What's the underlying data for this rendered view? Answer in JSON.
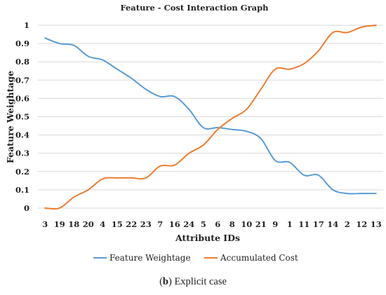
{
  "chart_data": {
    "type": "line",
    "title": "Feature - Cost Interaction Graph",
    "xlabel": "Attribute IDs",
    "ylabel": "Feature Weightage",
    "ylim": [
      0,
      1
    ],
    "yticks": [
      "0",
      "0.1",
      "0.2",
      "0.3",
      "0.4",
      "0.5",
      "0.6",
      "0.7",
      "0.8",
      "0.9",
      "1"
    ],
    "grid": true,
    "legend_position": "bottom",
    "categories": [
      "3",
      "19",
      "18",
      "20",
      "4",
      "15",
      "22",
      "23",
      "7",
      "16",
      "24",
      "5",
      "6",
      "8",
      "10",
      "21",
      "9",
      "1",
      "11",
      "17",
      "14",
      "2",
      "12",
      "13"
    ],
    "series": [
      {
        "name": "Feature Weightage",
        "color": "#5b9bd5",
        "values": [
          0.93,
          0.9,
          0.89,
          0.83,
          0.81,
          0.76,
          0.71,
          0.65,
          0.61,
          0.61,
          0.54,
          0.44,
          0.44,
          0.43,
          0.42,
          0.38,
          0.26,
          0.25,
          0.18,
          0.18,
          0.1,
          0.08,
          0.08,
          0.08
        ]
      },
      {
        "name": "Accumulated Cost",
        "color": "#ed7d31",
        "values": [
          0.0,
          0.0,
          0.06,
          0.1,
          0.16,
          0.165,
          0.165,
          0.165,
          0.23,
          0.235,
          0.3,
          0.345,
          0.43,
          0.49,
          0.54,
          0.65,
          0.76,
          0.76,
          0.79,
          0.86,
          0.96,
          0.96,
          0.99,
          1.0
        ]
      }
    ]
  },
  "caption": {
    "label": "b",
    "text": "Explicit case"
  }
}
